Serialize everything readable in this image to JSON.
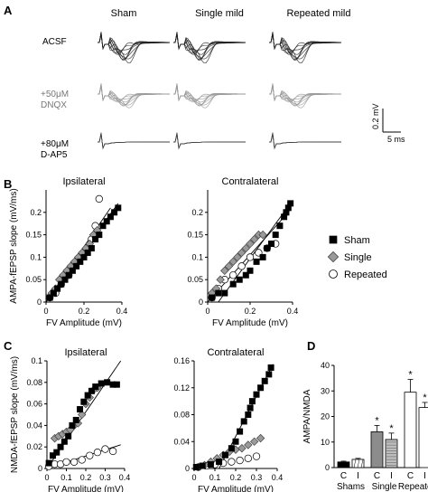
{
  "panels": {
    "a": {
      "letter": "A",
      "columns": [
        "Sham",
        "Single mild",
        "Repeated mild"
      ],
      "rows": [
        {
          "label_lines": [
            "ACSF"
          ],
          "color": "#222222"
        },
        {
          "label_lines": [
            "+50μM",
            "DNQX"
          ],
          "color": "#9a9a9a"
        },
        {
          "label_lines": [
            "+80μM",
            "D-AP5"
          ],
          "color": "#444444"
        }
      ],
      "scalebar": {
        "v_label": "0.2 mV",
        "t_label": "5 ms"
      }
    },
    "b": {
      "letter": "B"
    },
    "c": {
      "letter": "C"
    },
    "d": {
      "letter": "D"
    }
  },
  "legend": {
    "items": [
      "Sham",
      "Single",
      "Repeated"
    ]
  },
  "colors": {
    "sham": "#000000",
    "single": "#9a9a9a",
    "repeated": "#ffffff",
    "bar_single": "#8c8c8c"
  },
  "chart_data": [
    {
      "id": "B-ipsi",
      "type": "scatter",
      "title": "Ipsilateral",
      "xlabel": "FV Amplitude (mV)",
      "ylabel": "AMPA-fEPSP slope (mV/ms)",
      "xlim": [
        0,
        0.4
      ],
      "ylim": [
        0,
        0.25
      ],
      "xticks": [
        0,
        0.2,
        0.4
      ],
      "yticks": [
        0,
        0.05,
        0.1,
        0.15,
        0.2
      ],
      "xtick_labels": [
        "0",
        "0.2",
        "0.4"
      ],
      "ytick_labels": [
        "0",
        "0.05",
        "0.1",
        "0.15",
        "0.2"
      ],
      "series": [
        {
          "name": "Sham",
          "points": [
            [
              0.02,
              0.01
            ],
            [
              0.04,
              0.02
            ],
            [
              0.06,
              0.03
            ],
            [
              0.08,
              0.04
            ],
            [
              0.1,
              0.05
            ],
            [
              0.12,
              0.06
            ],
            [
              0.14,
              0.07
            ],
            [
              0.16,
              0.08
            ],
            [
              0.18,
              0.09
            ],
            [
              0.2,
              0.1
            ],
            [
              0.22,
              0.11
            ],
            [
              0.24,
              0.12
            ],
            [
              0.26,
              0.14
            ],
            [
              0.28,
              0.15
            ],
            [
              0.3,
              0.17
            ],
            [
              0.32,
              0.18
            ],
            [
              0.34,
              0.19
            ],
            [
              0.36,
              0.2
            ],
            [
              0.38,
              0.21
            ]
          ]
        },
        {
          "name": "Single",
          "points": [
            [
              0.03,
              0.02
            ],
            [
              0.05,
              0.03
            ],
            [
              0.07,
              0.05
            ],
            [
              0.09,
              0.06
            ],
            [
              0.11,
              0.07
            ],
            [
              0.13,
              0.08
            ],
            [
              0.15,
              0.09
            ],
            [
              0.17,
              0.1
            ],
            [
              0.19,
              0.11
            ],
            [
              0.21,
              0.12
            ],
            [
              0.23,
              0.13
            ],
            [
              0.25,
              0.15
            ],
            [
              0.27,
              0.16
            ]
          ]
        },
        {
          "name": "Repeated",
          "points": [
            [
              0.02,
              0.01
            ],
            [
              0.05,
              0.02
            ],
            [
              0.08,
              0.04
            ],
            [
              0.12,
              0.06
            ],
            [
              0.16,
              0.09
            ],
            [
              0.2,
              0.11
            ],
            [
              0.24,
              0.14
            ],
            [
              0.26,
              0.17
            ],
            [
              0.28,
              0.23
            ]
          ]
        }
      ],
      "fit_lines": [
        [
          [
            0,
            0
          ],
          [
            0.38,
            0.22
          ]
        ],
        [
          [
            0,
            0
          ],
          [
            0.34,
            0.21
          ]
        ]
      ]
    },
    {
      "id": "B-contra",
      "type": "scatter",
      "title": "Contralateral",
      "xlabel": "FV Amplitude (mV)",
      "ylabel": "",
      "xlim": [
        0,
        0.4
      ],
      "ylim": [
        0,
        0.25
      ],
      "xticks": [
        0,
        0.2,
        0.4
      ],
      "yticks": [
        0,
        0.05,
        0.1,
        0.15,
        0.2
      ],
      "xtick_labels": [
        "0",
        "0.2",
        "0.4"
      ],
      "ytick_labels": [
        "0",
        "0.05",
        "0.1",
        "0.15",
        "0.2"
      ],
      "series": [
        {
          "name": "Sham",
          "points": [
            [
              0.02,
              0.01
            ],
            [
              0.05,
              0.02
            ],
            [
              0.08,
              0.02
            ],
            [
              0.12,
              0.04
            ],
            [
              0.15,
              0.05
            ],
            [
              0.18,
              0.06
            ],
            [
              0.2,
              0.07
            ],
            [
              0.23,
              0.09
            ],
            [
              0.26,
              0.1
            ],
            [
              0.28,
              0.12
            ],
            [
              0.3,
              0.13
            ],
            [
              0.32,
              0.15
            ],
            [
              0.34,
              0.17
            ],
            [
              0.36,
              0.19
            ],
            [
              0.37,
              0.2
            ],
            [
              0.38,
              0.21
            ],
            [
              0.39,
              0.22
            ]
          ]
        },
        {
          "name": "Single",
          "points": [
            [
              0.02,
              0.02
            ],
            [
              0.04,
              0.03
            ],
            [
              0.06,
              0.05
            ],
            [
              0.08,
              0.07
            ],
            [
              0.1,
              0.08
            ],
            [
              0.12,
              0.09
            ],
            [
              0.14,
              0.1
            ],
            [
              0.16,
              0.11
            ],
            [
              0.18,
              0.12
            ],
            [
              0.2,
              0.13
            ],
            [
              0.22,
              0.14
            ],
            [
              0.24,
              0.15
            ],
            [
              0.26,
              0.15
            ]
          ]
        },
        {
          "name": "Repeated",
          "points": [
            [
              0.02,
              0.01
            ],
            [
              0.05,
              0.03
            ],
            [
              0.08,
              0.05
            ],
            [
              0.12,
              0.06
            ],
            [
              0.16,
              0.08
            ],
            [
              0.2,
              0.1
            ],
            [
              0.24,
              0.11
            ],
            [
              0.28,
              0.12
            ],
            [
              0.32,
              0.13
            ]
          ]
        }
      ],
      "fit_lines": [
        [
          [
            0,
            0
          ],
          [
            0.38,
            0.2
          ]
        ],
        [
          [
            0.05,
            0
          ],
          [
            0.39,
            0.22
          ]
        ]
      ]
    },
    {
      "id": "C-ipsi",
      "type": "scatter",
      "title": "Ipsilateral",
      "xlabel": "FV Amplitude (mV)",
      "ylabel": "NMDA-fEPSP slope (mV/ms)",
      "xlim": [
        0,
        0.4
      ],
      "ylim": [
        0,
        0.1
      ],
      "xticks": [
        0,
        0.1,
        0.2,
        0.3,
        0.4
      ],
      "yticks": [
        0,
        0.02,
        0.04,
        0.06,
        0.08,
        0.1
      ],
      "xtick_labels": [
        "0",
        "0.1",
        "0.2",
        "0.3",
        "0.4"
      ],
      "ytick_labels": [
        "0",
        "0.02",
        "0.04",
        "0.06",
        "0.08",
        "0.1"
      ],
      "series": [
        {
          "name": "Sham",
          "points": [
            [
              0.01,
              0.005
            ],
            [
              0.03,
              0.012
            ],
            [
              0.05,
              0.015
            ],
            [
              0.07,
              0.02
            ],
            [
              0.09,
              0.025
            ],
            [
              0.11,
              0.03
            ],
            [
              0.13,
              0.04
            ],
            [
              0.15,
              0.045
            ],
            [
              0.17,
              0.055
            ],
            [
              0.19,
              0.062
            ],
            [
              0.21,
              0.068
            ],
            [
              0.23,
              0.072
            ],
            [
              0.25,
              0.076
            ],
            [
              0.28,
              0.079
            ],
            [
              0.31,
              0.08
            ],
            [
              0.34,
              0.078
            ],
            [
              0.36,
              0.078
            ]
          ]
        },
        {
          "name": "Single",
          "points": [
            [
              0.04,
              0.028
            ],
            [
              0.06,
              0.03
            ],
            [
              0.08,
              0.032
            ],
            [
              0.1,
              0.034
            ],
            [
              0.12,
              0.036
            ],
            [
              0.14,
              0.04
            ],
            [
              0.16,
              0.042
            ],
            [
              0.18,
              0.05
            ],
            [
              0.2,
              0.06
            ],
            [
              0.22,
              0.066
            ],
            [
              0.24,
              0.073
            ],
            [
              0.26,
              0.075
            ]
          ]
        },
        {
          "name": "Repeated",
          "points": [
            [
              0.01,
              0.002
            ],
            [
              0.04,
              0.004
            ],
            [
              0.07,
              0.004
            ],
            [
              0.1,
              0.006
            ],
            [
              0.14,
              0.006
            ],
            [
              0.18,
              0.008
            ],
            [
              0.22,
              0.012
            ],
            [
              0.26,
              0.015
            ],
            [
              0.3,
              0.018
            ],
            [
              0.34,
              0.016
            ]
          ]
        }
      ],
      "fit_lines": [
        [
          [
            0,
            0
          ],
          [
            0.38,
            0.1
          ]
        ],
        [
          [
            0,
            0
          ],
          [
            0.38,
            0.022
          ]
        ]
      ]
    },
    {
      "id": "C-contra",
      "type": "scatter",
      "title": "Contralateral",
      "xlabel": "FV Amplitude (mV)",
      "ylabel": "",
      "xlim": [
        0,
        0.4
      ],
      "ylim": [
        0,
        0.16
      ],
      "xticks": [
        0,
        0.1,
        0.2,
        0.3,
        0.4
      ],
      "yticks": [
        0,
        0.04,
        0.08,
        0.12,
        0.16
      ],
      "xtick_labels": [
        "0",
        "0.1",
        "0.2",
        "0.3",
        "0.4"
      ],
      "ytick_labels": [
        "0",
        "0.04",
        "0.08",
        "0.12",
        "0.16"
      ],
      "series": [
        {
          "name": "Sham",
          "points": [
            [
              0.01,
              0.002
            ],
            [
              0.04,
              0.004
            ],
            [
              0.08,
              0.006
            ],
            [
              0.12,
              0.01
            ],
            [
              0.15,
              0.02
            ],
            [
              0.18,
              0.03
            ],
            [
              0.2,
              0.04
            ],
            [
              0.22,
              0.055
            ],
            [
              0.24,
              0.07
            ],
            [
              0.26,
              0.08
            ],
            [
              0.27,
              0.09
            ],
            [
              0.28,
              0.1
            ],
            [
              0.3,
              0.11
            ],
            [
              0.32,
              0.12
            ],
            [
              0.34,
              0.13
            ],
            [
              0.36,
              0.14
            ],
            [
              0.37,
              0.15
            ]
          ]
        },
        {
          "name": "Single",
          "points": [
            [
              0.02,
              0.002
            ],
            [
              0.05,
              0.005
            ],
            [
              0.08,
              0.01
            ],
            [
              0.11,
              0.015
            ],
            [
              0.14,
              0.02
            ],
            [
              0.17,
              0.025
            ],
            [
              0.2,
              0.028
            ],
            [
              0.23,
              0.03
            ],
            [
              0.26,
              0.035
            ],
            [
              0.29,
              0.04
            ],
            [
              0.32,
              0.045
            ]
          ]
        },
        {
          "name": "Repeated",
          "points": [
            [
              0.02,
              0.002
            ],
            [
              0.06,
              0.004
            ],
            [
              0.1,
              0.006
            ],
            [
              0.14,
              0.008
            ],
            [
              0.18,
              0.01
            ],
            [
              0.22,
              0.012
            ],
            [
              0.26,
              0.015
            ],
            [
              0.3,
              0.018
            ]
          ]
        }
      ],
      "fit_lines": [
        [
          [
            0.12,
            0
          ],
          [
            0.38,
            0.155
          ]
        ]
      ]
    },
    {
      "id": "D",
      "type": "bar",
      "title": "",
      "xlabel": "",
      "ylabel": "AMPA/NMDA",
      "ylim": [
        0,
        40
      ],
      "yticks": [
        0,
        10,
        20,
        30,
        40
      ],
      "ytick_labels": [
        "0",
        "10",
        "20",
        "30",
        "40"
      ],
      "categories": [
        "C",
        "I",
        "C",
        "I",
        "C",
        "I"
      ],
      "groups": [
        "Shams",
        "Single",
        "Repeated"
      ],
      "values": [
        2.2,
        3.2,
        14.0,
        11.0,
        29.5,
        23.5
      ],
      "errors": [
        0.3,
        0.4,
        2.5,
        2.5,
        5.0,
        2.0
      ],
      "significance": [
        "",
        "",
        "*",
        "*",
        "*",
        "*"
      ]
    }
  ]
}
